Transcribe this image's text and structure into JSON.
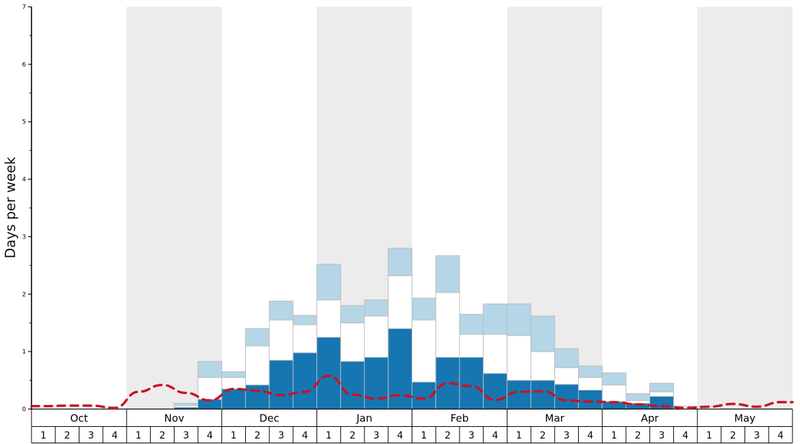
{
  "chart_data": {
    "type": "bar",
    "title": "",
    "ylabel": "Days per week",
    "xlabel": "",
    "ylim": [
      0,
      7
    ],
    "yticks": [
      0,
      1,
      2,
      3,
      4,
      5,
      6,
      7
    ],
    "grid": false,
    "legend": "none",
    "months": [
      "Oct",
      "Nov",
      "Dec",
      "Jan",
      "Feb",
      "Mar",
      "Apr",
      "May"
    ],
    "shaded_months": [
      "Nov",
      "Jan",
      "Mar",
      "May"
    ],
    "weeks_per_month": 4,
    "week_labels": [
      "1",
      "2",
      "3",
      "4"
    ],
    "series": [
      {
        "name": "dark-blue-bars",
        "color": "#1576b2",
        "values": [
          0,
          0,
          0,
          0,
          0,
          0,
          0.03,
          0.17,
          0.35,
          0.42,
          0.85,
          0.98,
          1.25,
          0.83,
          0.9,
          1.4,
          0.47,
          0.9,
          0.9,
          0.62,
          0.5,
          0.5,
          0.43,
          0.33,
          0.13,
          0.1,
          0.22,
          0,
          0,
          0,
          0,
          0
        ]
      },
      {
        "name": "white-bars",
        "color": "#ffffff",
        "values": [
          0,
          0,
          0,
          0,
          0,
          0,
          0.03,
          0.38,
          0.2,
          0.68,
          0.7,
          0.49,
          0.65,
          0.67,
          0.72,
          0.92,
          1.08,
          1.13,
          0.4,
          0.68,
          0.78,
          0.5,
          0.29,
          0.22,
          0.29,
          0.05,
          0.08,
          0.05,
          0.04,
          0,
          0,
          0
        ]
      },
      {
        "name": "light-blue-bars",
        "color": "#b5d6e6",
        "values": [
          0,
          0,
          0,
          0,
          0,
          0,
          0.04,
          0.28,
          0.1,
          0.3,
          0.33,
          0.16,
          0.62,
          0.3,
          0.28,
          0.48,
          0.38,
          0.64,
          0.35,
          0.53,
          0.55,
          0.62,
          0.33,
          0.2,
          0.21,
          0.12,
          0.15,
          0,
          0,
          0,
          0,
          0
        ]
      }
    ],
    "line_series": {
      "name": "red-dashed-line",
      "color": "#cc1122",
      "style": "dashed",
      "values": [
        0.05,
        0.06,
        0.06,
        0.02,
        0.3,
        0.42,
        0.28,
        0.15,
        0.35,
        0.32,
        0.24,
        0.3,
        0.58,
        0.25,
        0.18,
        0.24,
        0.18,
        0.45,
        0.4,
        0.16,
        0.3,
        0.31,
        0.15,
        0.13,
        0.12,
        0.08,
        0.05,
        0.02,
        0.04,
        0.09,
        0.04,
        0.12
      ]
    },
    "colors": {
      "band": "#ececec",
      "axis": "#000000",
      "bar_border": "#bcbcbc",
      "background": "#ffffff"
    }
  }
}
